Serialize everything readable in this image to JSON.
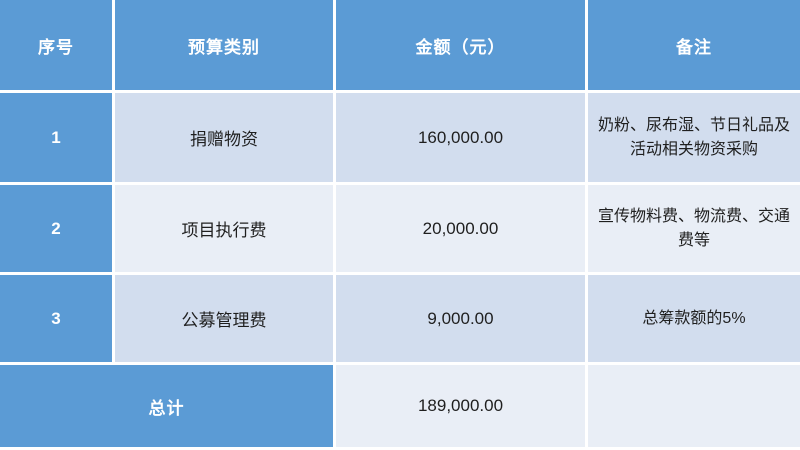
{
  "table": {
    "columns": [
      "序号",
      "预算类别",
      "金额（元）",
      "备注"
    ],
    "rows": [
      {
        "no": "1",
        "category": "捐赠物资",
        "amount": "160,000.00",
        "note": "奶粉、尿布湿、节日礼品及活动相关物资采购"
      },
      {
        "no": "2",
        "category": "项目执行费",
        "amount": "20,000.00",
        "note": "宣传物料费、物流费、交通费等"
      },
      {
        "no": "3",
        "category": "公募管理费",
        "amount": "9,000.00",
        "note": "总筹款额的5%"
      }
    ],
    "total": {
      "label": "总计",
      "amount": "189,000.00",
      "note": ""
    }
  },
  "colors": {
    "header_blue": "#5b9bd5",
    "band_dark": "#d2ddee",
    "band_light": "#e9eef6",
    "divider": "#ffffff",
    "text_dark": "#1f1f1f",
    "text_light": "#ffffff"
  }
}
